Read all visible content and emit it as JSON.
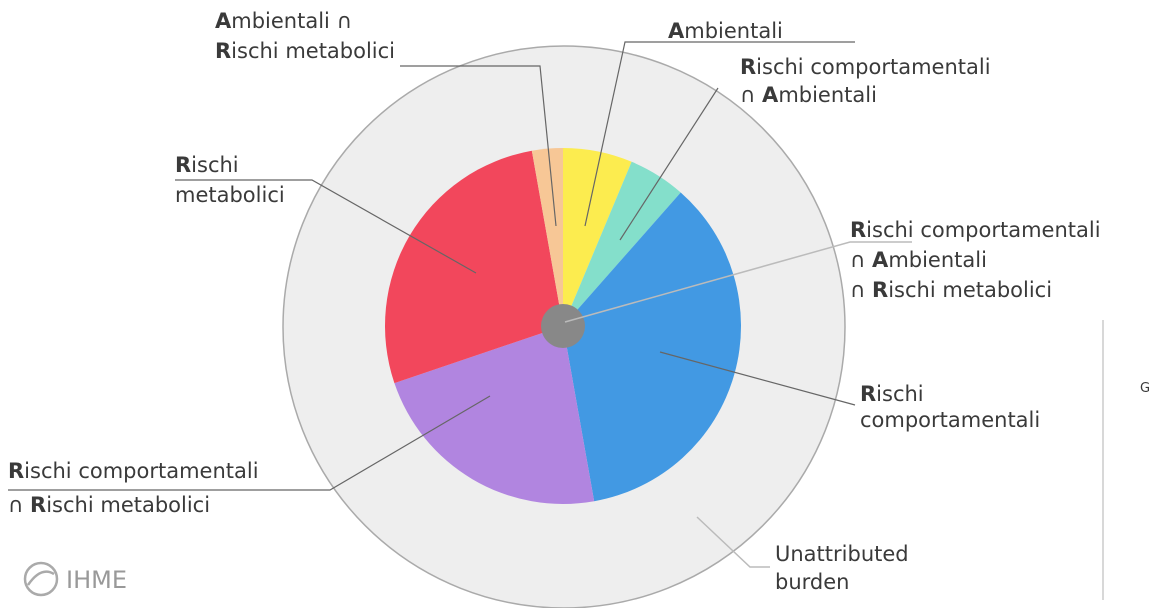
{
  "chart_data": {
    "type": "pie",
    "categories": [
      [
        "Ambientali"
      ],
      [
        "Rischi comportamentali",
        "∩ Ambientali"
      ],
      [
        "Rischi",
        "comportamentali"
      ],
      [
        "Rischi comportamentali",
        "∩ Rischi metabolici"
      ],
      [
        "Rischi",
        "metabolici"
      ],
      [
        "Ambientali ∩",
        "Rischi metabolici"
      ]
    ],
    "values": [
      6.3,
      5.2,
      35.7,
      22.6,
      27.4,
      2.8
    ],
    "colors": [
      "#fcec4f",
      "#84dfcb",
      "#4299e3",
      "#b185e0",
      "#f2475c",
      "#f7c796"
    ],
    "center_label": [
      "Rischi comportamentali",
      "∩ Ambientali",
      "∩ Rischi metabolici"
    ],
    "outer_label": [
      "Unattributed",
      "burden"
    ],
    "logo": "IHME",
    "side_text": "G"
  }
}
